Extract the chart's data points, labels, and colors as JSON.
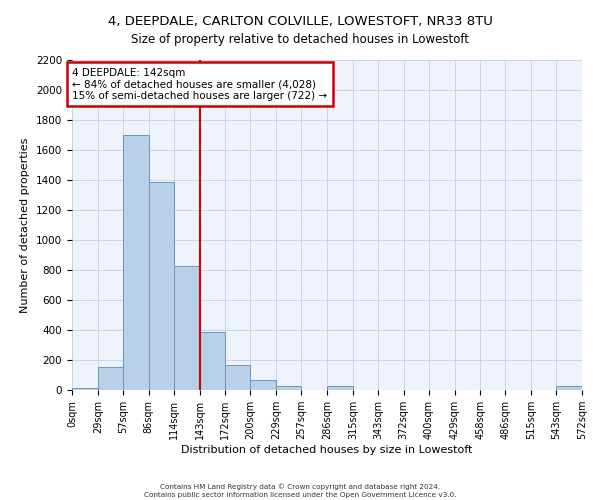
{
  "title": "4, DEEPDALE, CARLTON COLVILLE, LOWESTOFT, NR33 8TU",
  "subtitle": "Size of property relative to detached houses in Lowestoft",
  "xlabel": "Distribution of detached houses by size in Lowestoft",
  "ylabel": "Number of detached properties",
  "bin_edges": [
    0,
    29,
    57,
    86,
    114,
    143,
    172,
    200,
    229,
    257,
    286,
    315,
    343,
    372,
    400,
    429,
    458,
    486,
    515,
    543,
    572
  ],
  "bin_labels": [
    "0sqm",
    "29sqm",
    "57sqm",
    "86sqm",
    "114sqm",
    "143sqm",
    "172sqm",
    "200sqm",
    "229sqm",
    "257sqm",
    "286sqm",
    "315sqm",
    "343sqm",
    "372sqm",
    "400sqm",
    "429sqm",
    "458sqm",
    "486sqm",
    "515sqm",
    "543sqm",
    "572sqm"
  ],
  "counts": [
    15,
    155,
    1700,
    1390,
    830,
    390,
    165,
    65,
    30,
    0,
    25,
    0,
    0,
    0,
    0,
    0,
    0,
    0,
    0,
    25
  ],
  "bar_color": "#b8d0e8",
  "bar_edge_color": "#6699bb",
  "vline_x": 143,
  "vline_color": "#cc0000",
  "annotation_title": "4 DEEPDALE: 142sqm",
  "annotation_line1": "← 84% of detached houses are smaller (4,028)",
  "annotation_line2": "15% of semi-detached houses are larger (722) →",
  "annotation_box_color": "#cc0000",
  "ylim": [
    0,
    2200
  ],
  "yticks": [
    0,
    200,
    400,
    600,
    800,
    1000,
    1200,
    1400,
    1600,
    1800,
    2000,
    2200
  ],
  "footer_line1": "Contains HM Land Registry data © Crown copyright and database right 2024.",
  "footer_line2": "Contains public sector information licensed under the Open Government Licence v3.0.",
  "bg_color": "#eef2fa",
  "grid_color": "#c5cfe8"
}
